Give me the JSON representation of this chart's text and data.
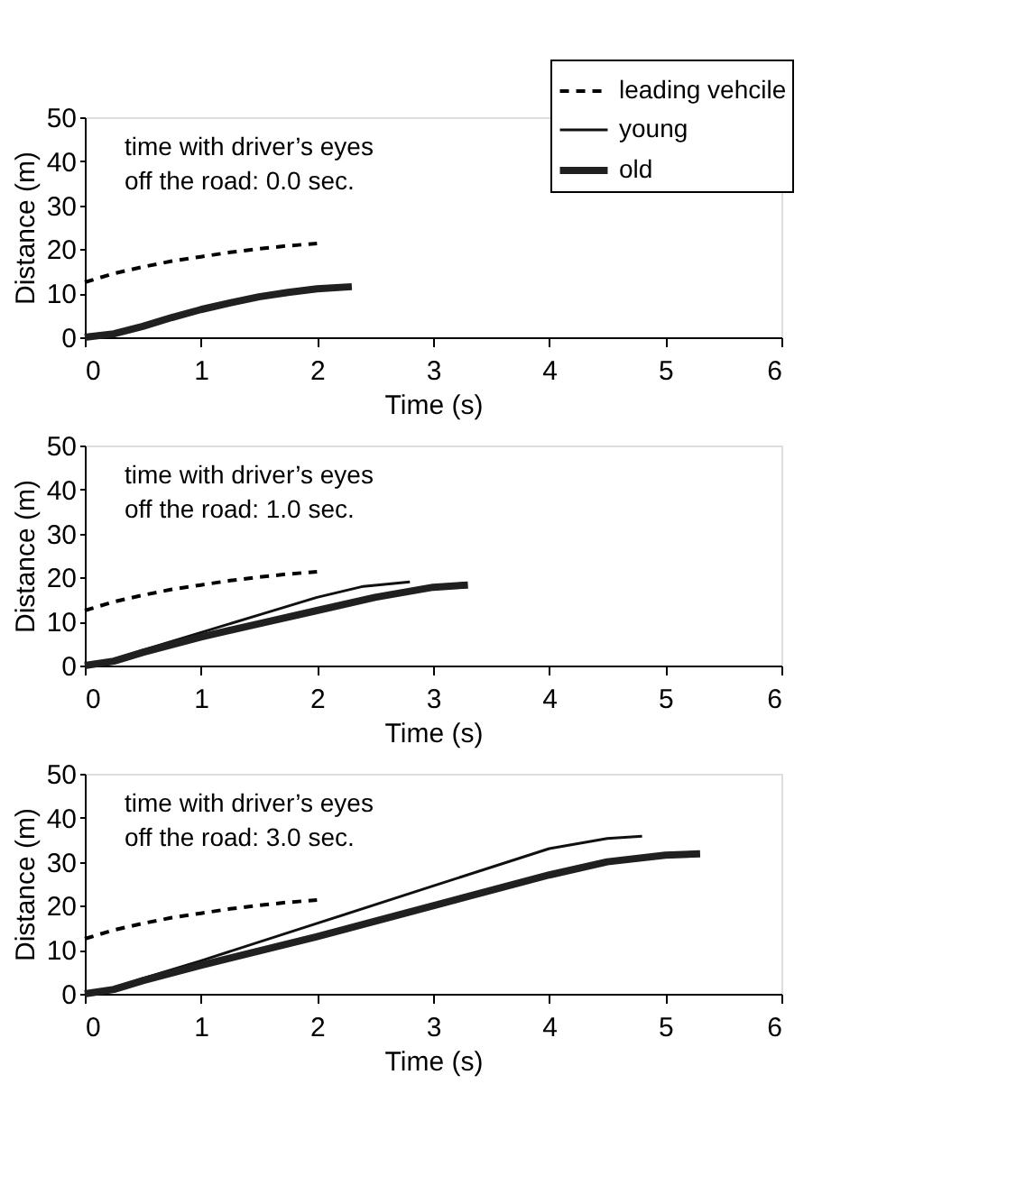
{
  "chart_data": [
    {
      "type": "line",
      "xlabel": "Time (s)",
      "ylabel": "Distance (m)",
      "xlim": [
        0,
        6
      ],
      "xticks": [
        0,
        1,
        2,
        3,
        4,
        5,
        6
      ],
      "ylim": [
        0,
        50
      ],
      "yticks": [
        0,
        10,
        20,
        30,
        40,
        50
      ],
      "grid": false,
      "legend": "top right",
      "annotations": [
        "time with driver’s eyes\noff the road: 0.0 sec."
      ],
      "series": [
        {
          "name": "leading vehcile",
          "color": "#000000",
          "line_style": "dashed",
          "x": [
            0,
            0.25,
            0.5,
            0.75,
            1,
            1.25,
            1.5,
            1.75,
            2
          ],
          "values": [
            12.5,
            14.5,
            16,
            17.3,
            18.3,
            19.3,
            20.1,
            20.8,
            21.3
          ]
        },
        {
          "name": "young",
          "color": "#101010",
          "line_style": "solid"
        },
        {
          "name": "old",
          "color": "#202020",
          "line_style": "solid",
          "x": [
            0,
            0.25,
            0.5,
            0.75,
            1,
            1.25,
            1.5,
            1.75,
            2,
            2.3
          ],
          "values": [
            0,
            0.8,
            2.5,
            4.5,
            6.3,
            7.8,
            9.2,
            10.2,
            11,
            11.5
          ]
        }
      ]
    },
    {
      "type": "line",
      "xlabel": "Time (s)",
      "ylabel": "Distance (m)",
      "xlim": [
        0,
        6
      ],
      "xticks": [
        0,
        1,
        2,
        3,
        4,
        5,
        6
      ],
      "ylim": [
        0,
        50
      ],
      "yticks": [
        0,
        10,
        20,
        30,
        40,
        50
      ],
      "grid": false,
      "legend": false,
      "annotations": [
        "time with driver’s eyes\noff the road: 1.0 sec."
      ],
      "series": [
        {
          "color": "#000000",
          "line_style": "dashed",
          "x": [
            0,
            0.25,
            0.5,
            0.75,
            1,
            1.25,
            1.5,
            1.75,
            2
          ],
          "values": [
            12.5,
            14.5,
            16,
            17.3,
            18.3,
            19.3,
            20.1,
            20.8,
            21.3
          ]
        },
        {
          "color": "#101010",
          "line_style": "solid",
          "x": [
            0,
            0.25,
            0.5,
            1,
            1.5,
            2,
            2.4,
            2.8
          ],
          "values": [
            0,
            1.2,
            3.5,
            7.5,
            11.5,
            15.5,
            18,
            19
          ]
        },
        {
          "color": "#202020",
          "line_style": "solid",
          "x": [
            0,
            0.25,
            0.5,
            1,
            1.5,
            2,
            2.5,
            3,
            3.3
          ],
          "values": [
            0,
            1,
            3,
            6.5,
            9.5,
            12.5,
            15.5,
            17.8,
            18.3
          ]
        }
      ]
    },
    {
      "type": "line",
      "xlabel": "Time (s)",
      "ylabel": "Distance (m)",
      "xlim": [
        0,
        6
      ],
      "xticks": [
        0,
        1,
        2,
        3,
        4,
        5,
        6
      ],
      "ylim": [
        0,
        50
      ],
      "yticks": [
        0,
        10,
        20,
        30,
        40,
        50
      ],
      "grid": false,
      "legend": false,
      "annotations": [
        "time with driver’s eyes\noff the road: 3.0 sec."
      ],
      "series": [
        {
          "color": "#000000",
          "line_style": "dashed",
          "x": [
            0,
            0.25,
            0.5,
            0.75,
            1,
            1.25,
            1.5,
            1.75,
            2
          ],
          "values": [
            12.5,
            14.5,
            16,
            17.3,
            18.3,
            19.3,
            20.1,
            20.8,
            21.3
          ]
        },
        {
          "color": "#101010",
          "line_style": "solid",
          "x": [
            0,
            0.25,
            0.5,
            1,
            2,
            3,
            4,
            4.5,
            4.8
          ],
          "values": [
            0,
            1.2,
            3.5,
            7.5,
            16,
            24.5,
            33,
            35.3,
            35.8
          ]
        },
        {
          "color": "#202020",
          "line_style": "solid",
          "x": [
            0,
            0.25,
            0.5,
            1,
            2,
            3,
            4,
            4.5,
            5,
            5.3
          ],
          "values": [
            0,
            1,
            3,
            6.5,
            13,
            20,
            27,
            30,
            31.5,
            31.8
          ]
        }
      ]
    }
  ]
}
